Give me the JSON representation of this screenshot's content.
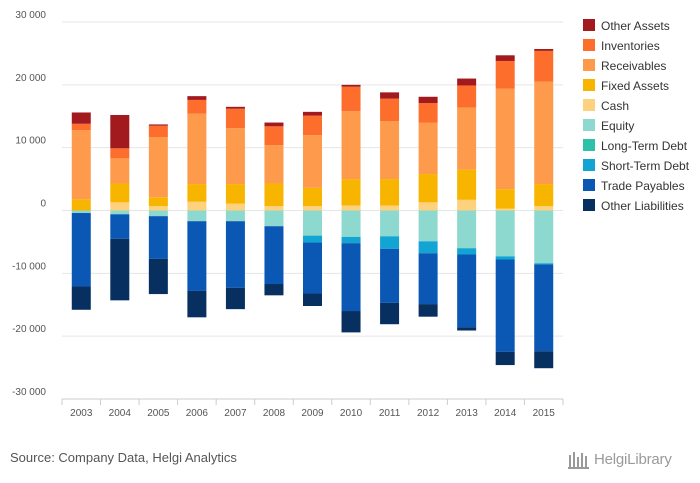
{
  "chart_data": {
    "type": "bar",
    "stacked": true,
    "categories": [
      "2003",
      "2004",
      "2005",
      "2006",
      "2007",
      "2008",
      "2009",
      "2010",
      "2011",
      "2012",
      "2013",
      "2014",
      "2015"
    ],
    "ylim": [
      -30000,
      30000
    ],
    "yticks": [
      -30000,
      -20000,
      -10000,
      0,
      10000,
      20000,
      30000
    ],
    "ytick_labels": [
      "-30 000",
      "-20 000",
      "-10 000",
      "0",
      "10 000",
      "20 000",
      "30 000"
    ],
    "grid": true,
    "legend_position": "right",
    "positive_series": [
      {
        "name": "Fixed Assets",
        "color": "#f7b500",
        "values": [
          1800,
          3000,
          1400,
          2800,
          3100,
          3600,
          2900,
          4200,
          4200,
          4500,
          4800,
          3100,
          3500
        ]
      },
      {
        "name": "Receivables",
        "color": "#fd9a4b",
        "values": [
          11000,
          4000,
          9600,
          11200,
          8900,
          6100,
          8400,
          10800,
          9200,
          8200,
          9900,
          16000,
          16300
        ]
      },
      {
        "name": "Inventories",
        "color": "#fd6d2c",
        "values": [
          1000,
          1600,
          1800,
          2200,
          3100,
          3000,
          3100,
          3900,
          3600,
          3100,
          3500,
          4400,
          4900
        ]
      },
      {
        "name": "Other Assets",
        "color": "#a21a1e",
        "values": [
          1800,
          5300,
          200,
          600,
          300,
          600,
          600,
          300,
          1000,
          1000,
          1100,
          900,
          300
        ]
      }
    ],
    "negative_series": [
      {
        "name": "Equity",
        "color": "#8ed9cf",
        "values": [
          -400,
          -600,
          -900,
          -1700,
          -1700,
          -2500,
          -4000,
          -4200,
          -4100,
          -4900,
          -6000,
          -7300,
          -8400
        ]
      },
      {
        "name": "Short-Term Debt",
        "color": "#12a5d3",
        "values": [
          0,
          0,
          0,
          0,
          0,
          0,
          -1100,
          -1000,
          -2000,
          -1900,
          -1000,
          -500,
          -200
        ]
      },
      {
        "name": "Trade Payables",
        "color": "#0b58b4",
        "values": [
          -11700,
          -3900,
          -6800,
          -11100,
          -10600,
          -9200,
          -8100,
          -10800,
          -8600,
          -8100,
          -11600,
          -14700,
          -13800
        ]
      },
      {
        "name": "Other Liabilities",
        "color": "#072f5f",
        "values": [
          -3700,
          -9800,
          -5600,
          -4200,
          -3400,
          -1800,
          -2000,
          -3400,
          -3400,
          -2000,
          -500,
          -2100,
          -2700
        ]
      }
    ],
    "legend": [
      {
        "name": "Other Assets",
        "color": "#a21a1e"
      },
      {
        "name": "Inventories",
        "color": "#fd6d2c"
      },
      {
        "name": "Receivables",
        "color": "#fd9a4b"
      },
      {
        "name": "Fixed Assets",
        "color": "#f7b500"
      },
      {
        "name": "Cash",
        "color": "#fdd17e"
      },
      {
        "name": "Equity",
        "color": "#8ed9cf"
      },
      {
        "name": "Long-Term Debt",
        "color": "#2cc1a8"
      },
      {
        "name": "Short-Term Debt",
        "color": "#12a5d3"
      },
      {
        "name": "Trade Payables",
        "color": "#0b58b4"
      },
      {
        "name": "Other Liabilities",
        "color": "#072f5f"
      }
    ],
    "cash_series": {
      "name": "Cash",
      "color": "#fdd17e",
      "values": [
        0,
        1300,
        700,
        1400,
        1100,
        700,
        700,
        800,
        800,
        1300,
        1700,
        300,
        700
      ]
    }
  },
  "footer": {
    "source": "Source: Company Data, Helgi Analytics",
    "brand": "HelgiLibrary"
  }
}
